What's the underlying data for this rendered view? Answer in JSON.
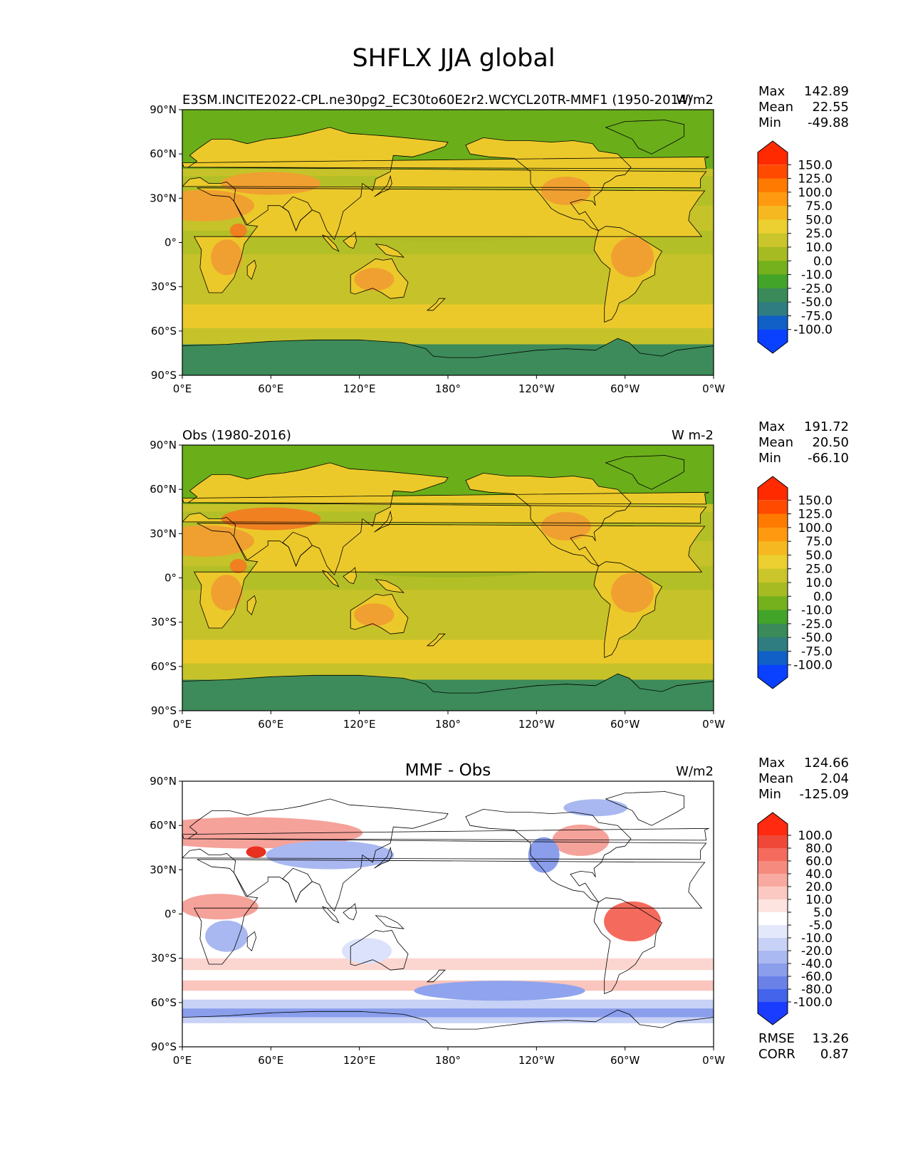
{
  "title": "SHFLX JJA global",
  "lat_labels": [
    "90°N",
    "60°N",
    "30°N",
    "0°",
    "30°S",
    "60°S",
    "90°S"
  ],
  "lon_labels": [
    "0°E",
    "60°E",
    "120°E",
    "180°",
    "120°W",
    "60°W",
    "0°W"
  ],
  "colors": {
    "ocean_high_lat": "#6aae1a",
    "ocean_mid": "#c6c22a",
    "ocean_tropics": "#b3bf26",
    "storm_track": "#ecc92a",
    "antarctica": "#3d8b5a",
    "land_dry": "#f0a030",
    "land_hot": "#f08020",
    "diff_pos": "#f4a29a",
    "diff_neg": "#a9b8f0",
    "diff_neutral": "#ffffff"
  },
  "panels": [
    {
      "id": "test",
      "title_left": "E3SM.INCITE2022-CPL.ne30pg2_EC30to60E2r2.WCYCL20TR-MMF1 (1950-2014)",
      "title_center": "",
      "units": "W/m2",
      "stats": [
        {
          "label": "Max",
          "value": "142.89"
        },
        {
          "label": "Mean",
          "value": "22.55"
        },
        {
          "label": "Min",
          "value": "-49.88"
        }
      ],
      "colorbar": {
        "levels": [
          "150.0",
          "125.0",
          "100.0",
          "75.0",
          "50.0",
          "25.0",
          "10.0",
          "0.0",
          "-10.0",
          "-25.0",
          "-50.0",
          "-75.0",
          "-100.0"
        ],
        "colors": [
          "#ff2a00",
          "#ff4a00",
          "#ff7a00",
          "#ff9a10",
          "#f6b820",
          "#eccf30",
          "#c9c52a",
          "#a6bb22",
          "#74b11c",
          "#42a428",
          "#3a8a5a",
          "#2f7d80",
          "#1060c8",
          "#0a40ff"
        ]
      },
      "extra_stats": []
    },
    {
      "id": "obs",
      "title_left": "Obs (1980-2016)",
      "title_center": "",
      "units": "W m-2",
      "stats": [
        {
          "label": "Max",
          "value": "191.72"
        },
        {
          "label": "Mean",
          "value": "20.50"
        },
        {
          "label": "Min",
          "value": "-66.10"
        }
      ],
      "colorbar": {
        "levels": [
          "150.0",
          "125.0",
          "100.0",
          "75.0",
          "50.0",
          "25.0",
          "10.0",
          "0.0",
          "-10.0",
          "-25.0",
          "-50.0",
          "-75.0",
          "-100.0"
        ],
        "colors": [
          "#ff2a00",
          "#ff4a00",
          "#ff7a00",
          "#ff9a10",
          "#f6b820",
          "#eccf30",
          "#c9c52a",
          "#a6bb22",
          "#74b11c",
          "#42a428",
          "#3a8a5a",
          "#2f7d80",
          "#1060c8",
          "#0a40ff"
        ]
      },
      "extra_stats": []
    },
    {
      "id": "diff",
      "title_left": "",
      "title_center": "MMF - Obs",
      "units": "W/m2",
      "stats": [
        {
          "label": "Max",
          "value": "124.66"
        },
        {
          "label": "Mean",
          "value": "2.04"
        },
        {
          "label": "Min",
          "value": "-125.09"
        }
      ],
      "colorbar": {
        "levels": [
          "100.0",
          "80.0",
          "60.0",
          "40.0",
          "20.0",
          "10.0",
          "5.0",
          "-5.0",
          "-10.0",
          "-20.0",
          "-40.0",
          "-60.0",
          "-80.0",
          "-100.0"
        ],
        "colors": [
          "#ff2a10",
          "#f04838",
          "#f46a5c",
          "#f68a7e",
          "#f8aaa0",
          "#fbc9c2",
          "#fde4e0",
          "#ffffff",
          "#e4e8fb",
          "#c8d2f6",
          "#aab9f1",
          "#8a9eec",
          "#6a82e8",
          "#4464ec",
          "#1a3cff"
        ]
      },
      "extra_stats": [
        {
          "label": "RMSE",
          "value": "13.26"
        },
        {
          "label": "CORR",
          "value": "0.87"
        }
      ]
    }
  ]
}
